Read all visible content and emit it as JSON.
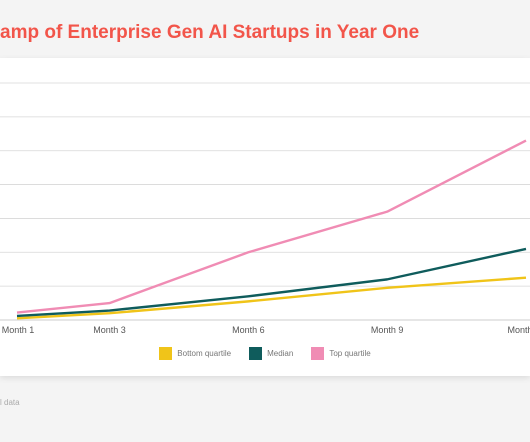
{
  "page": {
    "title": "amp of Enterprise Gen AI Startups in Year One",
    "source_fragment": "l data"
  },
  "colors": {
    "title": "#f2554a",
    "bottom_quartile": "#f0c419",
    "median": "#0f5c5c",
    "top_quartile": "#f08cb4",
    "grid": "#d7d7d7"
  },
  "chart_data": {
    "type": "line",
    "title": "amp of Enterprise Gen AI Startups in Year One",
    "xlabel": "",
    "ylabel": "",
    "x": [
      1,
      2,
      3,
      4,
      5,
      6,
      7,
      8,
      9,
      10,
      11,
      12
    ],
    "x_tick_labels": [
      {
        "x": 1,
        "label": "Month 1"
      },
      {
        "x": 3,
        "label": "Month 3"
      },
      {
        "x": 6,
        "label": "Month 6"
      },
      {
        "x": 9,
        "label": "Month 9"
      },
      {
        "x": 12,
        "label": "Month"
      }
    ],
    "xlim": [
      1,
      12
    ],
    "ylim": [
      0,
      7
    ],
    "grid": true,
    "legend_placement": "bottom-center",
    "series": [
      {
        "name": "Bottom quartile",
        "color": "#f0c419",
        "points": [
          [
            1,
            0.05
          ],
          [
            3,
            0.2
          ],
          [
            6,
            0.55
          ],
          [
            9,
            0.95
          ],
          [
            12,
            1.25
          ]
        ]
      },
      {
        "name": "Median",
        "color": "#0f5c5c",
        "points": [
          [
            1,
            0.12
          ],
          [
            3,
            0.28
          ],
          [
            6,
            0.7
          ],
          [
            9,
            1.2
          ],
          [
            12,
            2.1
          ]
        ]
      },
      {
        "name": "Top quartile",
        "color": "#f08cb4",
        "points": [
          [
            1,
            0.22
          ],
          [
            3,
            0.5
          ],
          [
            4,
            1.0
          ],
          [
            6,
            2.0
          ],
          [
            9,
            3.2
          ],
          [
            12,
            5.3
          ]
        ]
      }
    ]
  }
}
